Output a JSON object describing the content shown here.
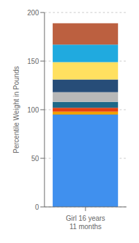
{
  "chart_data": {
    "type": "bar",
    "stacked": true,
    "categories": [
      "Girl 16 years 11 months"
    ],
    "ylabel": "Percentile Weight in Pounds",
    "ylim": [
      0,
      200
    ],
    "yticks": [
      0,
      50,
      100,
      150,
      200
    ],
    "grid": true,
    "series": [
      {
        "color": "#4090EE",
        "values": [
          95
        ]
      },
      {
        "color": "#F0A000",
        "values": [
          3
        ]
      },
      {
        "color": "#E84010",
        "values": [
          4
        ]
      },
      {
        "color": "#1E6888",
        "values": [
          6
        ]
      },
      {
        "color": "#B8B8B8",
        "values": [
          10
        ]
      },
      {
        "color": "#274D78",
        "values": [
          13
        ]
      },
      {
        "color": "#FFE060",
        "values": [
          18
        ]
      },
      {
        "color": "#20AADF",
        "values": [
          18
        ]
      },
      {
        "color": "#BC6040",
        "values": [
          22
        ]
      }
    ]
  }
}
